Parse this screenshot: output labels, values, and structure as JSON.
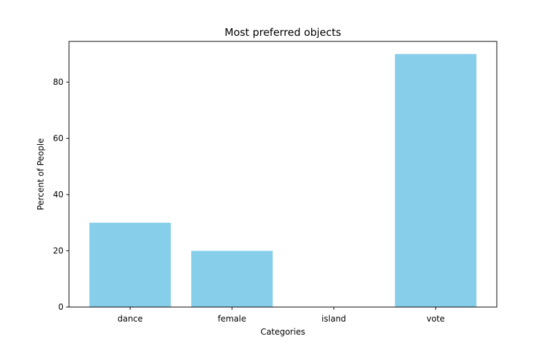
{
  "chart_data": {
    "type": "bar",
    "title": "Most preferred objects",
    "xlabel": "Categories",
    "ylabel": "Percent of People",
    "categories": [
      "dance",
      "female",
      "island",
      "vote"
    ],
    "values": [
      30,
      20,
      0,
      90
    ],
    "ylim": [
      0,
      94.5
    ],
    "yticks": [
      0,
      20,
      40,
      60,
      80
    ],
    "bar_color": "#87CEEB",
    "grid": false,
    "legend": "none"
  }
}
